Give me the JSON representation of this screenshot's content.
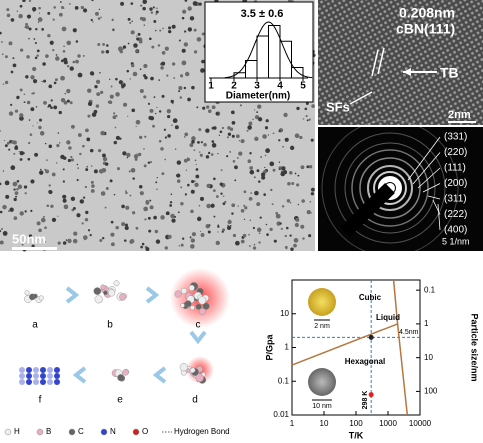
{
  "tem": {
    "scale_bar": "50nm"
  },
  "histogram": {
    "type": "histogram",
    "title": "3.5 ± 0.6",
    "xlabel": "Diameter(nm)",
    "bins": [
      2,
      2.5,
      3,
      3.5,
      4,
      4.5,
      5
    ],
    "values": [
      3,
      10,
      24,
      30,
      21,
      6
    ],
    "xlim": [
      1,
      5
    ],
    "xticks": [
      1,
      2,
      3,
      4,
      5
    ],
    "ylim": [
      0,
      32
    ]
  },
  "hrtem": {
    "spacing": "0.208nm",
    "plane": "cBN(111)",
    "twin": "TB",
    "faults": "SFs",
    "scale_bar": "2nm"
  },
  "saed": {
    "rings": [
      "(331)",
      "(220)",
      "(111)",
      "(200)",
      "(311)",
      "(222)",
      "(400)"
    ],
    "scale_bar": "5 1/nm"
  },
  "scheme": {
    "steps": [
      "a",
      "b",
      "c",
      "d",
      "e",
      "f"
    ],
    "legend": [
      "H",
      "B",
      "C",
      "N",
      "O",
      "Hydrogen Bond"
    ]
  },
  "chart_data": {
    "type": "line",
    "xlabel": "T/K",
    "ylabel": "P/Gpa",
    "y2label": "Particle size/nm",
    "xlog": true,
    "ylog": true,
    "y2log": true,
    "xlim": [
      1,
      10000
    ],
    "xticks": [
      1,
      10,
      100,
      1000,
      10000
    ],
    "ylim": [
      0.01,
      100
    ],
    "yticks": [
      0.01,
      0.1,
      1,
      10
    ],
    "y2lim": [
      0.05,
      500
    ],
    "y2ticks": [
      0.1,
      1,
      10,
      100
    ],
    "series": [
      {
        "color": "#b5773f",
        "x": [
          1,
          2000
        ],
        "values": [
          0.3,
          5
        ]
      },
      {
        "color": "#b5773f",
        "x": [
          1500,
          2000,
          4000
        ],
        "values": [
          100,
          5,
          0.01
        ]
      }
    ],
    "points": [
      {
        "x": 298,
        "y": 2,
        "color": "#222"
      },
      {
        "x": 298,
        "y": 0.04,
        "color": "#e02020"
      }
    ],
    "regions": [
      "Cubic",
      "Liquid",
      "Hexagonal"
    ],
    "size_label": "4.5nm",
    "temp_label": "298 K",
    "inset_scales": [
      "2 nm",
      "10 nm"
    ]
  }
}
